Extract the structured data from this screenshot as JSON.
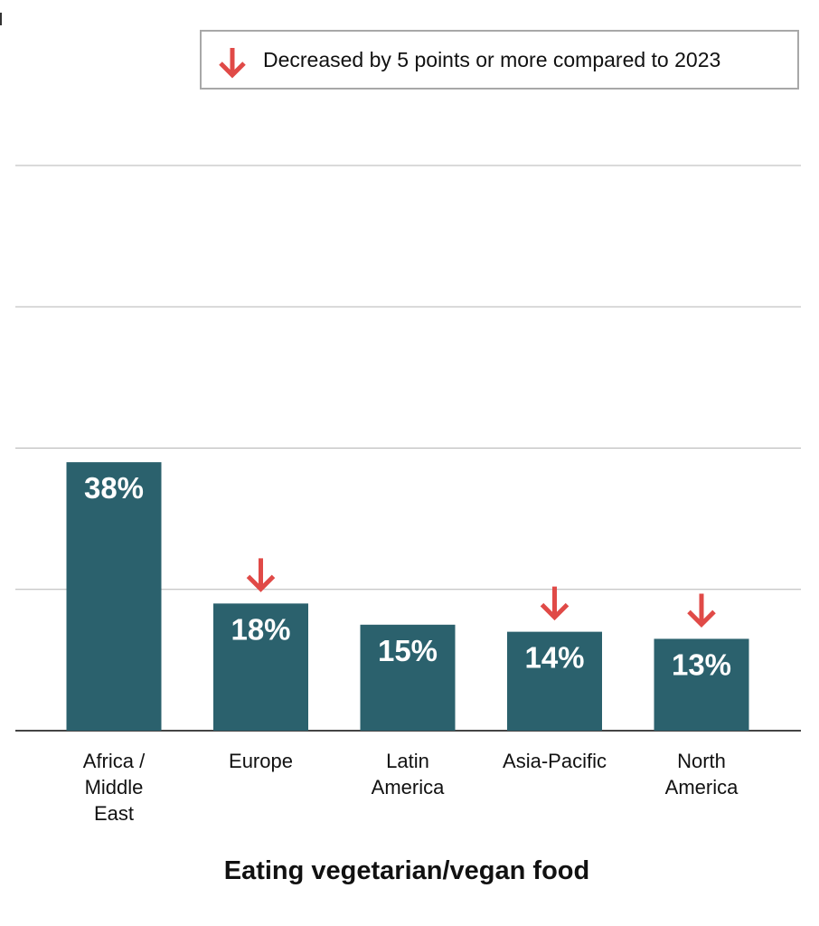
{
  "legend": {
    "icon": "down-arrow-icon",
    "text": "Decreased by 5 points or more compared to 2023"
  },
  "colors": {
    "bar": "#2b616d",
    "arrow": "#e04a47",
    "grid": "#b5b5b5",
    "axis": "#444444"
  },
  "chart_data": {
    "type": "bar",
    "title": "Eating vegetarian/vegan food",
    "xlabel": "Eating vegetarian/vegan food",
    "ylabel": "",
    "categories": [
      [
        "Africa /",
        "Middle",
        "East"
      ],
      [
        "Europe"
      ],
      [
        "Latin",
        "America"
      ],
      [
        "Asia-Pacific"
      ],
      [
        "North",
        "America"
      ]
    ],
    "values": [
      38,
      18,
      15,
      14,
      13
    ],
    "data_labels": [
      "38%",
      "18%",
      "15%",
      "14%",
      "13%"
    ],
    "decreased_5pts_or_more": [
      false,
      true,
      false,
      true,
      true
    ],
    "ylim": [
      0,
      80
    ],
    "gridlines": [
      20,
      40,
      60,
      80
    ],
    "grid": true,
    "y_tick_labels_shown": false,
    "legend_position": "top-right"
  }
}
